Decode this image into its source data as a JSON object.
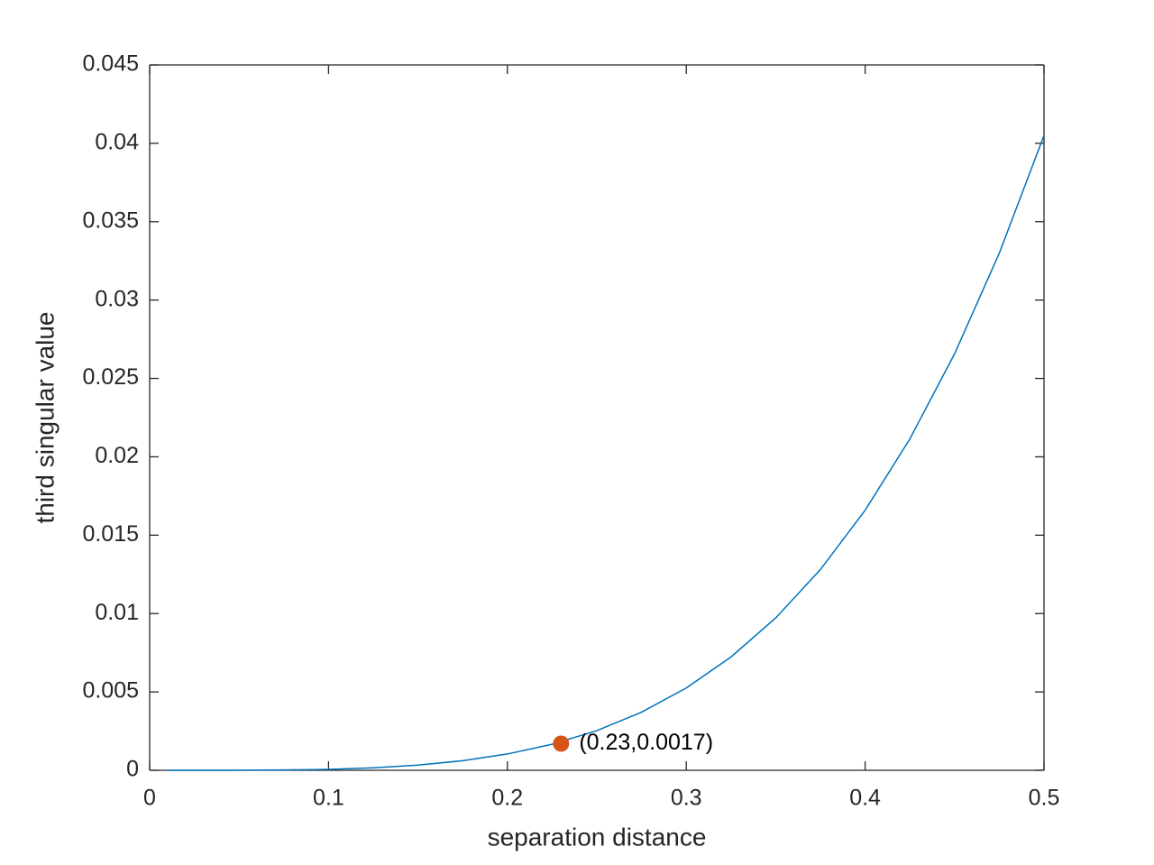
{
  "chart_data": {
    "type": "line",
    "xlabel": "separation distance",
    "ylabel": "third singular value",
    "xlim": [
      0,
      0.5
    ],
    "xticks": [
      0,
      0.1,
      0.2,
      0.3,
      0.4,
      0.5
    ],
    "ylim": [
      0,
      0.045
    ],
    "yticks": [
      0,
      0.005,
      0.01,
      0.015,
      0.02,
      0.025,
      0.03,
      0.035,
      0.04,
      0.045
    ],
    "box": true,
    "series": [
      {
        "color": "#0072bd",
        "style": "line",
        "x": [
          0.01,
          0.025,
          0.05,
          0.075,
          0.1,
          0.125,
          0.15,
          0.175,
          0.2,
          0.225,
          0.25,
          0.275,
          0.3,
          0.325,
          0.35,
          0.375,
          0.4,
          0.425,
          0.45,
          0.475,
          0.5
        ],
        "values": [
          0,
          0,
          4e-06,
          2e-05,
          6e-05,
          0.00016,
          0.00033,
          0.00061,
          0.00104,
          0.00166,
          0.00253,
          0.00371,
          0.00525,
          0.00723,
          0.00972,
          0.01281,
          0.01659,
          0.02114,
          0.02657,
          0.03299,
          0.0405
        ]
      },
      {
        "color": "#d95319",
        "style": "marker",
        "x": [
          0.23
        ],
        "values": [
          0.0017
        ],
        "value_labels": [
          "(0.23,0.0017)"
        ]
      }
    ]
  }
}
